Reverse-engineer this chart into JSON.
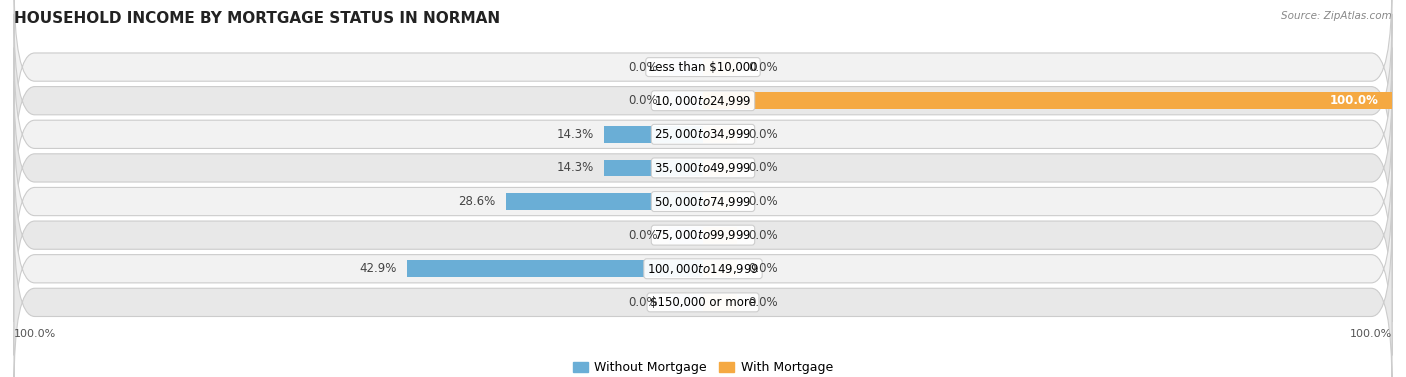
{
  "title": "HOUSEHOLD INCOME BY MORTGAGE STATUS IN NORMAN",
  "source": "Source: ZipAtlas.com",
  "categories": [
    "Less than $10,000",
    "$10,000 to $24,999",
    "$25,000 to $34,999",
    "$35,000 to $49,999",
    "$50,000 to $74,999",
    "$75,000 to $99,999",
    "$100,000 to $149,999",
    "$150,000 or more"
  ],
  "without_mortgage": [
    0.0,
    0.0,
    14.3,
    14.3,
    28.6,
    0.0,
    42.9,
    0.0
  ],
  "with_mortgage": [
    0.0,
    100.0,
    0.0,
    0.0,
    0.0,
    0.0,
    0.0,
    0.0
  ],
  "color_without": "#6AAED6",
  "color_without_stub": "#B8D9EE",
  "color_with": "#F5A942",
  "color_with_stub": "#F9D4A0",
  "row_color_light": "#F2F2F2",
  "row_color_dark": "#E8E8E8",
  "xlim_left": -100,
  "xlim_right": 100,
  "title_fontsize": 11,
  "label_fontsize": 8.5,
  "value_fontsize": 8.5,
  "axis_label_left": "100.0%",
  "axis_label_right": "100.0%",
  "legend_label_without": "Without Mortgage",
  "legend_label_with": "With Mortgage",
  "stub_size": 5
}
